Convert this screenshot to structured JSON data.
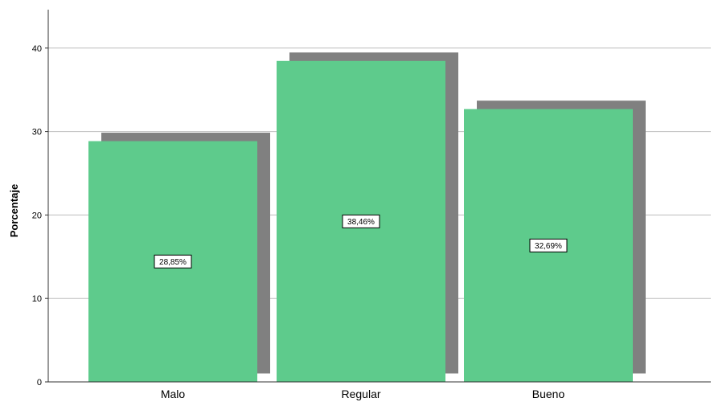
{
  "chart_data": {
    "type": "bar",
    "categories": [
      "Malo",
      "Regular",
      "Bueno"
    ],
    "values": [
      28.85,
      38.46,
      32.69
    ],
    "data_labels": [
      "28,85%",
      "38,46%",
      "32,69%"
    ],
    "title": "",
    "xlabel": "",
    "ylabel": "Porcentaje",
    "ylim": [
      0,
      44
    ],
    "yticks": [
      0,
      10,
      20,
      30,
      40
    ],
    "grid": true,
    "bar_color": "#5ecb8c",
    "shadow_color": "#808080"
  }
}
